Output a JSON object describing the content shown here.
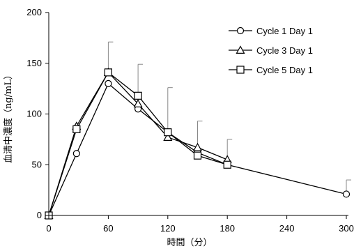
{
  "chart_data": {
    "type": "line",
    "title": "",
    "xlabel": "時間（分）",
    "ylabel": "血清中濃度（ng/mL）",
    "xlim": [
      0,
      300
    ],
    "ylim": [
      0,
      200
    ],
    "xticks": [
      0,
      60,
      120,
      180,
      240,
      300
    ],
    "yticks": [
      0,
      50,
      100,
      150,
      200
    ],
    "grid": false,
    "legend_position": "top-right",
    "series": [
      {
        "name": "Cycle 1 Day 1",
        "marker": "circle",
        "color": "#000000",
        "x": [
          0,
          28,
          60,
          90,
          120,
          150,
          180,
          300
        ],
        "y": [
          0,
          61,
          130,
          105,
          82,
          62,
          50,
          21
        ],
        "error_upper": [
          null,
          null,
          null,
          null,
          null,
          null,
          null,
          35
        ]
      },
      {
        "name": "Cycle 3 Day 1",
        "marker": "triangle",
        "color": "#000000",
        "x": [
          0,
          28,
          60,
          90,
          120,
          150,
          180
        ],
        "y": [
          0,
          88,
          141,
          110,
          77,
          67,
          55
        ],
        "error_upper": [
          null,
          null,
          null,
          null,
          null,
          93,
          75
        ]
      },
      {
        "name": "Cycle 5 Day 1",
        "marker": "square",
        "color": "#000000",
        "x": [
          0,
          28,
          60,
          90,
          120,
          150,
          180
        ],
        "y": [
          0,
          85,
          141,
          118,
          82,
          59,
          50
        ],
        "error_upper": [
          null,
          null,
          171,
          149,
          126,
          null,
          null
        ]
      }
    ]
  }
}
